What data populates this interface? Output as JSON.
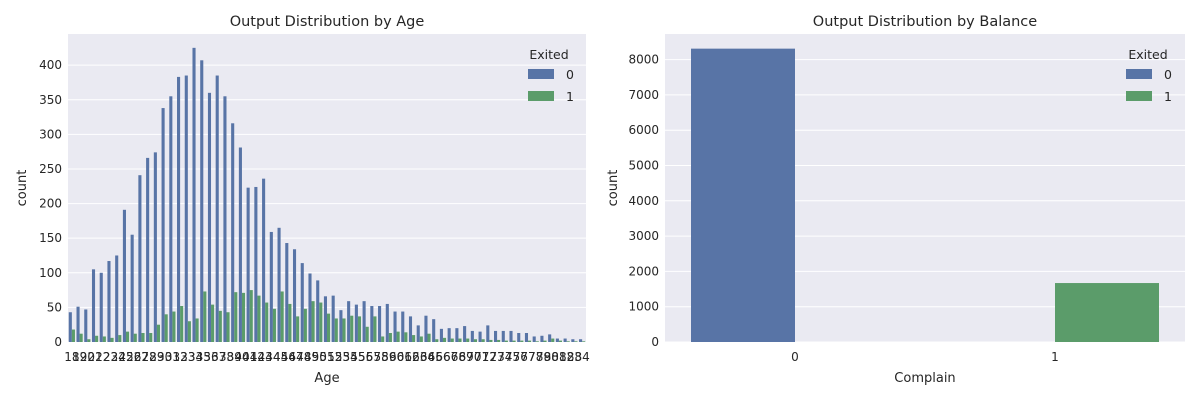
{
  "chart_data": [
    {
      "type": "bar",
      "title": "Output Distribution by Age",
      "xlabel": "Age",
      "ylabel": "count",
      "ylim": [
        0,
        445
      ],
      "yticks": [
        0,
        50,
        100,
        150,
        200,
        250,
        300,
        350,
        400
      ],
      "grid": true,
      "legend": {
        "title": "Exited",
        "placement": "top-right"
      },
      "categories": [
        "18",
        "19",
        "20",
        "21",
        "22",
        "23",
        "24",
        "25",
        "26",
        "27",
        "28",
        "29",
        "30",
        "31",
        "32",
        "33",
        "34",
        "35",
        "36",
        "37",
        "38",
        "39",
        "40",
        "41",
        "42",
        "43",
        "44",
        "45",
        "46",
        "47",
        "48",
        "49",
        "50",
        "51",
        "52",
        "53",
        "54",
        "55",
        "56",
        "57",
        "58",
        "59",
        "60",
        "61",
        "62",
        "63",
        "64",
        "65",
        "66",
        "67",
        "68",
        "69",
        "70",
        "71",
        "72",
        "73",
        "74",
        "75",
        "76",
        "77",
        "78",
        "79",
        "80",
        "81",
        "82",
        "83",
        "84"
      ],
      "series": [
        {
          "name": "0",
          "color": "#5874a6",
          "values": [
            43,
            51,
            47,
            105,
            100,
            117,
            125,
            191,
            155,
            241,
            266,
            274,
            338,
            355,
            383,
            385,
            425,
            407,
            360,
            385,
            355,
            316,
            281,
            223,
            224,
            236,
            159,
            165,
            143,
            134,
            114,
            99,
            89,
            66,
            67,
            46,
            59,
            54,
            59,
            52,
            52,
            55,
            44,
            44,
            37,
            24,
            38,
            33,
            19,
            20,
            20,
            23,
            16,
            15,
            24,
            16,
            16,
            16,
            13,
            13,
            8,
            9,
            11,
            5,
            5,
            4,
            4
          ]
        },
        {
          "name": "1",
          "color": "#5b9c6a",
          "values": [
            18,
            12,
            4,
            9,
            8,
            6,
            10,
            15,
            12,
            13,
            13,
            25,
            40,
            44,
            52,
            30,
            34,
            73,
            54,
            45,
            43,
            72,
            71,
            75,
            67,
            57,
            48,
            73,
            55,
            37,
            48,
            59,
            57,
            41,
            34,
            34,
            38,
            37,
            22,
            37,
            8,
            13,
            15,
            14,
            10,
            8,
            12,
            4,
            6,
            5,
            5,
            5,
            4,
            4,
            3,
            3,
            2,
            2,
            2,
            2,
            1,
            2,
            5,
            2,
            1,
            1,
            1
          ]
        }
      ]
    },
    {
      "type": "bar",
      "title": "Output Distribution by Balance",
      "xlabel": "Complain",
      "ylabel": "count",
      "ylim": [
        0,
        8725
      ],
      "yticks": [
        0,
        1000,
        2000,
        3000,
        4000,
        5000,
        6000,
        7000,
        8000
      ],
      "grid": true,
      "legend": {
        "title": "Exited",
        "placement": "top-right"
      },
      "categories": [
        "0",
        "1"
      ],
      "series": [
        {
          "name": "0",
          "color": "#5874a6",
          "values": [
            8310,
            0
          ]
        },
        {
          "name": "1",
          "color": "#5b9c6a",
          "values": [
            0,
            1670
          ]
        }
      ]
    }
  ]
}
